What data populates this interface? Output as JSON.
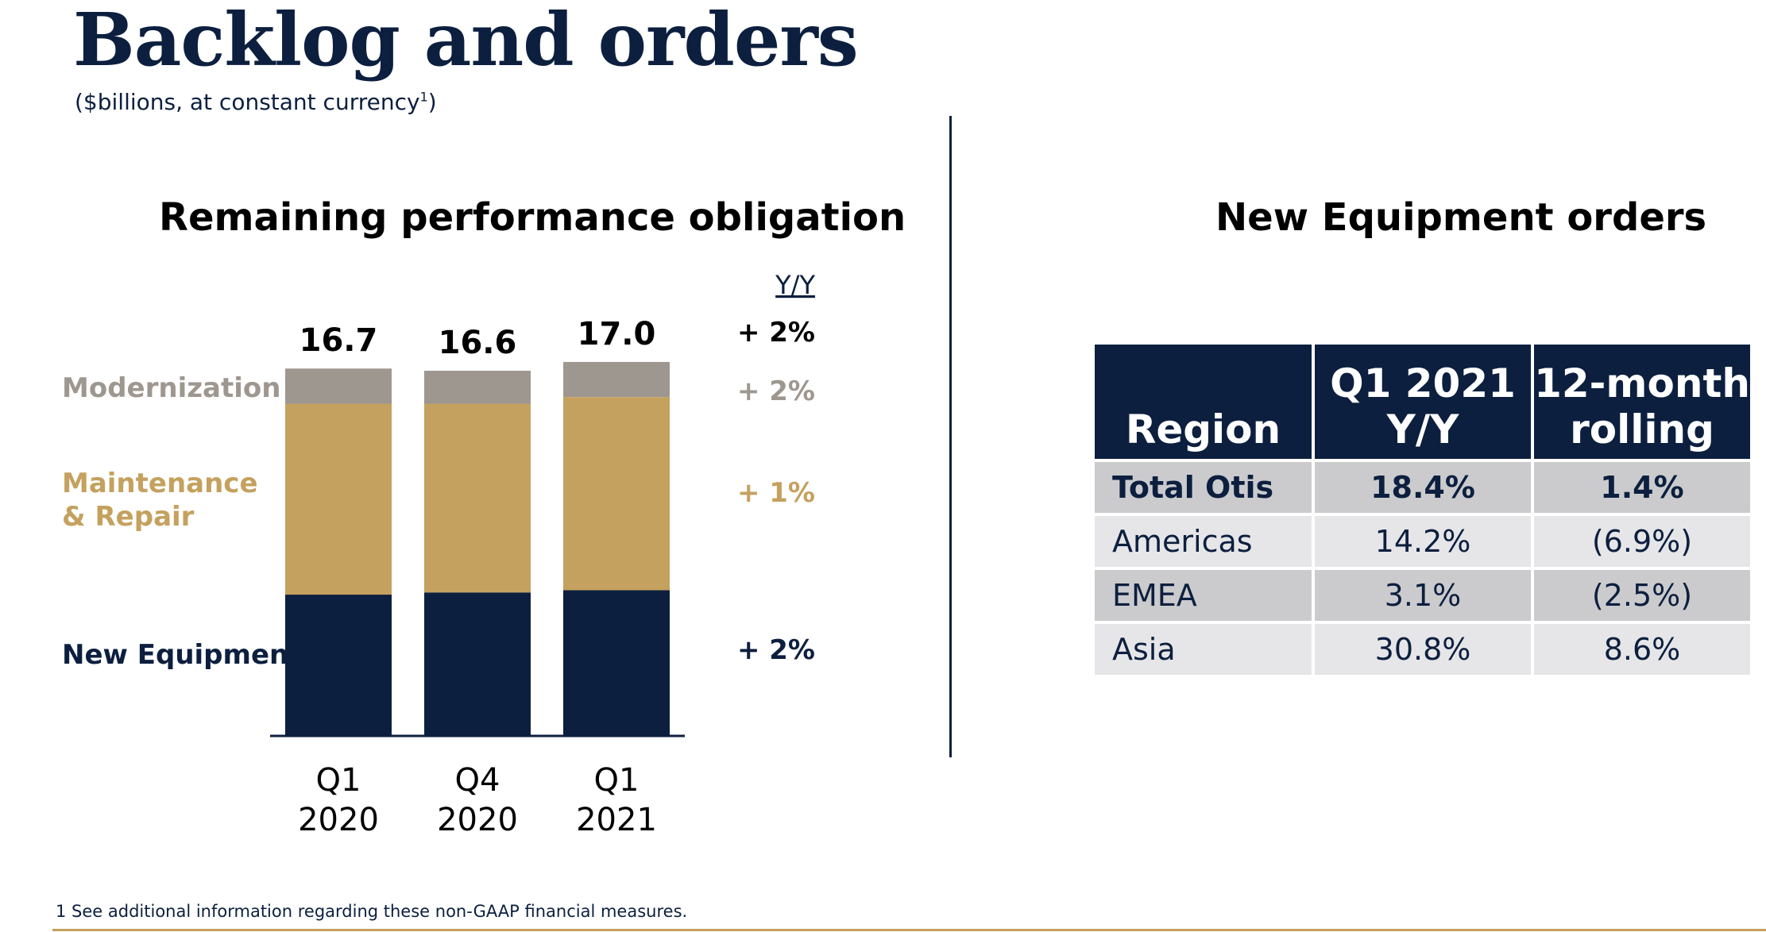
{
  "page": {
    "title": "Backlog and orders",
    "subtitle_text": "($billions, at constant currency",
    "subtitle_sup": "1",
    "subtitle_close": ")",
    "footnote": "1 See additional information regarding these non-GAAP financial measures."
  },
  "chart_data": {
    "type": "bar",
    "stacked": true,
    "title": "Remaining performance obligation",
    "categories": [
      "Q1 2020",
      "Q4 2020",
      "Q1 2021"
    ],
    "category_lines": [
      [
        "Q1",
        "2020"
      ],
      [
        "Q4",
        "2020"
      ],
      [
        "Q1",
        "2021"
      ]
    ],
    "series": [
      {
        "name": "New Equipment",
        "values": [
          6.4,
          6.5,
          6.6
        ],
        "color": "#0c1f3f",
        "yoy": "+ 2%",
        "label_color": "#0c1f3f"
      },
      {
        "name": "Maintenance & Repair",
        "label_lines": [
          "Maintenance",
          "& Repair"
        ],
        "values": [
          8.7,
          8.6,
          8.8
        ],
        "color": "#c4a15e",
        "yoy": "+ 1%",
        "label_color": "#c4a15e"
      },
      {
        "name": "Modernization",
        "values": [
          1.6,
          1.5,
          1.6
        ],
        "color": "#9e9790",
        "yoy": "+ 2%",
        "label_color": "#9e9790"
      }
    ],
    "totals": [
      "16.7",
      "16.6",
      "17.0"
    ],
    "yoy_header": "Y/Y",
    "total_yoy": "+ 2%",
    "ylim": [
      0,
      17.0
    ]
  },
  "orders": {
    "title": "New Equipment orders",
    "headers": [
      [
        "Region"
      ],
      [
        "Q1 2021",
        "Y/Y"
      ],
      [
        "12-month",
        "rolling"
      ]
    ],
    "rows": [
      [
        "Total Otis",
        "18.4%",
        "1.4%"
      ],
      [
        "Americas",
        "14.2%",
        "(6.9%)"
      ],
      [
        "EMEA",
        "3.1%",
        "(2.5%)"
      ],
      [
        "Asia",
        "30.8%",
        "8.6%"
      ]
    ]
  }
}
